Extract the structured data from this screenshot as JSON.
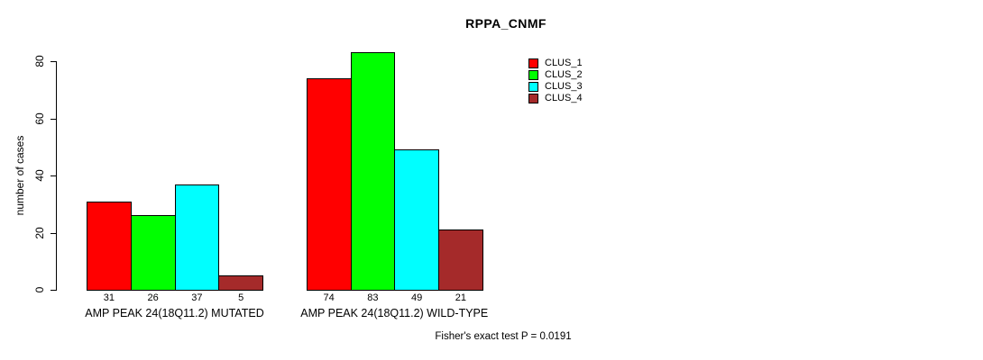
{
  "chart_data": {
    "type": "bar",
    "title": "RPPA_CNMF",
    "ylabel": "number of cases",
    "xlabel": "",
    "ylim": [
      0,
      80
    ],
    "yticks": [
      0,
      20,
      40,
      60,
      80
    ],
    "grid": false,
    "legend_position": "top-right",
    "categories": [
      "AMP PEAK 24(18Q11.2) MUTATED",
      "AMP PEAK 24(18Q11.2) WILD-TYPE"
    ],
    "series": [
      {
        "name": "CLUS_1",
        "color": "#ff0000",
        "values": [
          31,
          74
        ]
      },
      {
        "name": "CLUS_2",
        "color": "#00ff00",
        "values": [
          26,
          83
        ]
      },
      {
        "name": "CLUS_3",
        "color": "#00ffff",
        "values": [
          37,
          49
        ]
      },
      {
        "name": "CLUS_4",
        "color": "#a52a2a",
        "values": [
          5,
          21
        ]
      }
    ],
    "bar_value_labels": [
      [
        31,
        26,
        37,
        5
      ],
      [
        74,
        83,
        49,
        21
      ]
    ],
    "annotation": "Fisher's exact test P = 0.0191",
    "colors": {
      "background": "#ffffff",
      "axis": "#000000",
      "text": "#000000"
    }
  }
}
